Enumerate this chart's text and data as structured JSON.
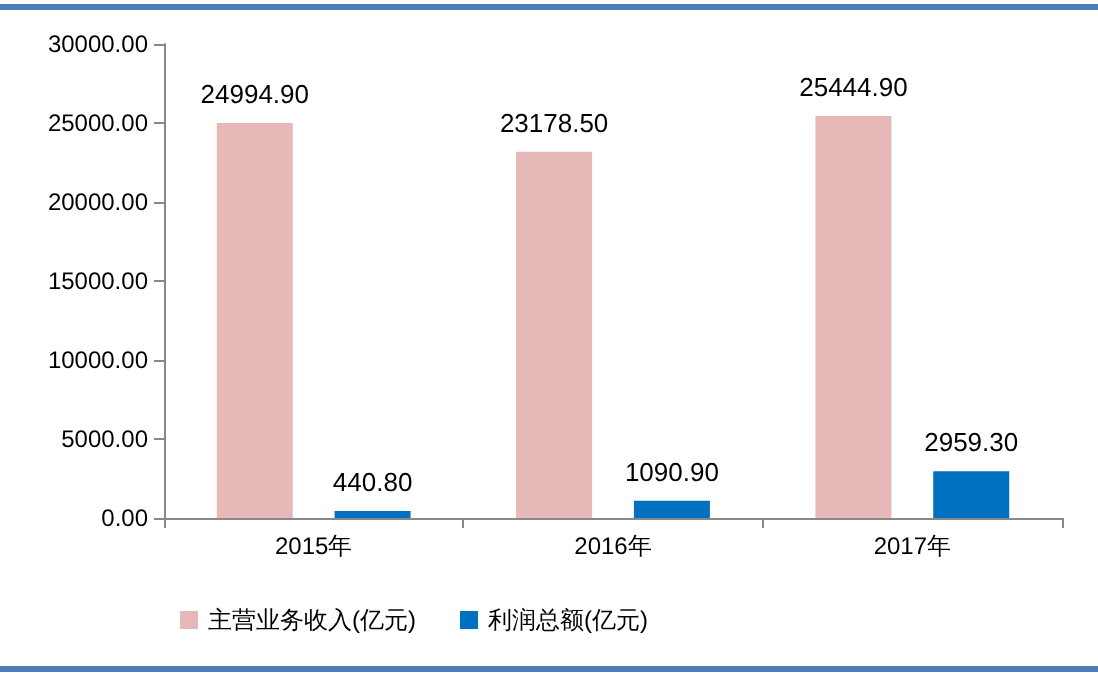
{
  "chart_data": {
    "type": "bar",
    "categories": [
      "2015年",
      "2016年",
      "2017年"
    ],
    "series": [
      {
        "name": "主营业务收入(亿元)",
        "color": "#e6b9b8",
        "values": [
          24994.9,
          23178.5,
          25444.9
        ],
        "value_labels": [
          "24994.90",
          "23178.50",
          "25444.90"
        ]
      },
      {
        "name": "利润总额(亿元)",
        "color": "#0070c0",
        "values": [
          440.8,
          1090.9,
          2959.3
        ],
        "value_labels": [
          "440.80",
          "1090.90",
          "2959.30"
        ]
      }
    ],
    "ylim": [
      0,
      30000
    ],
    "yticks": [
      {
        "value": 0,
        "label": "0.00"
      },
      {
        "value": 5000,
        "label": "5000.00"
      },
      {
        "value": 10000,
        "label": "10000.00"
      },
      {
        "value": 15000,
        "label": "15000.00"
      },
      {
        "value": 20000,
        "label": "20000.00"
      },
      {
        "value": 25000,
        "label": "25000.00"
      },
      {
        "value": 30000,
        "label": "30000.00"
      }
    ],
    "grid": false,
    "legend": "bottom"
  }
}
